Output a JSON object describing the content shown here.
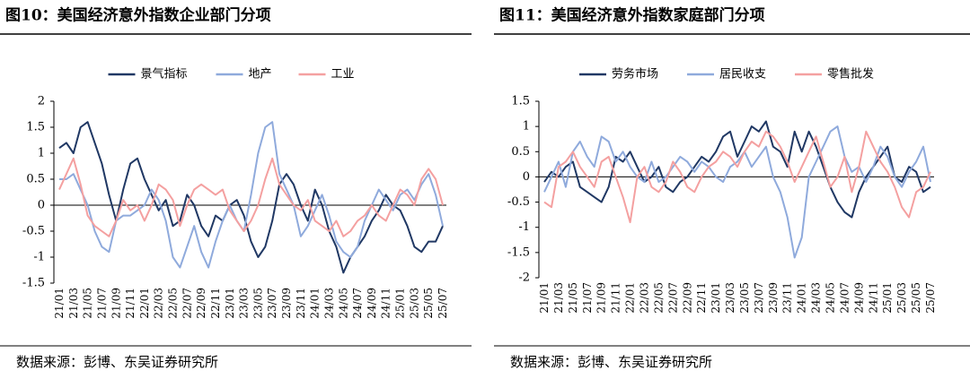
{
  "chart_data": [
    {
      "type": "line",
      "title": "图10：美国经济意外指数企业部门分项",
      "source": "数据来源：彭博、东吴证券研究所",
      "categories": [
        "21/01",
        null,
        "21/03",
        null,
        "21/05",
        null,
        "21/07",
        null,
        "21/09",
        null,
        "21/11",
        null,
        "22/01",
        null,
        "22/03",
        null,
        "22/05",
        null,
        "22/07",
        null,
        "22/09",
        null,
        "22/11",
        null,
        "23/01",
        null,
        "23/03",
        null,
        "23/05",
        null,
        "23/07",
        null,
        "23/09",
        null,
        "23/11",
        null,
        "24/01",
        null,
        "24/03",
        null,
        "24/05",
        null,
        "24/07",
        null,
        "24/09",
        null,
        "24/11",
        null,
        "25/01",
        null,
        "25/03",
        null,
        "25/05",
        null,
        "25/07"
      ],
      "series": [
        {
          "name": "景气指标",
          "color": "#203864",
          "values": [
            1.1,
            1.2,
            1.0,
            1.5,
            1.6,
            1.2,
            0.8,
            0.2,
            -0.3,
            0.3,
            0.8,
            0.9,
            0.5,
            0.2,
            -0.1,
            0.1,
            -0.4,
            -0.3,
            0.2,
            0.0,
            -0.4,
            -0.6,
            -0.2,
            -0.3,
            0.0,
            0.1,
            -0.2,
            -0.7,
            -1.0,
            -0.8,
            -0.3,
            0.4,
            0.6,
            0.4,
            0.0,
            -0.3,
            0.3,
            0.0,
            -0.5,
            -0.8,
            -1.3,
            -1.0,
            -0.8,
            -0.6,
            -0.3,
            -0.1,
            0.2,
            0.0,
            -0.1,
            -0.4,
            -0.8,
            -0.9,
            -0.7,
            -0.7,
            -0.4
          ]
        },
        {
          "name": "地产",
          "color": "#8faadc",
          "values": [
            0.5,
            0.5,
            0.6,
            0.3,
            0.0,
            -0.5,
            -0.8,
            -0.9,
            -0.3,
            -0.2,
            -0.2,
            -0.1,
            0.0,
            0.3,
            0.1,
            -0.3,
            -1.0,
            -1.2,
            -0.8,
            -0.4,
            -0.9,
            -1.2,
            -0.7,
            -0.3,
            0.0,
            -0.3,
            -0.5,
            0.2,
            1.0,
            1.5,
            1.6,
            0.6,
            0.3,
            0.0,
            -0.6,
            -0.4,
            -0.1,
            0.2,
            -0.2,
            -0.7,
            -0.9,
            -1.0,
            -0.8,
            -0.3,
            0.0,
            0.3,
            0.1,
            -0.1,
            0.2,
            0.3,
            0.1,
            0.4,
            0.6,
            0.2,
            -0.4
          ]
        },
        {
          "name": "工业",
          "color": "#f4a0a0",
          "values": [
            0.3,
            0.6,
            0.9,
            0.4,
            -0.2,
            -0.4,
            -0.5,
            -0.6,
            -0.3,
            0.1,
            -0.1,
            0.0,
            -0.3,
            0.0,
            0.4,
            0.3,
            0.1,
            -0.4,
            0.0,
            0.3,
            0.4,
            0.3,
            0.2,
            0.3,
            -0.1,
            -0.3,
            -0.5,
            -0.3,
            0.0,
            0.5,
            0.9,
            0.4,
            0.2,
            0.0,
            -0.1,
            0.1,
            -0.3,
            -0.4,
            -0.5,
            -0.3,
            -0.6,
            -0.5,
            -0.3,
            -0.2,
            0.0,
            -0.2,
            -0.3,
            0.0,
            0.3,
            0.2,
            0.0,
            0.5,
            0.7,
            0.5,
            0.0
          ]
        }
      ],
      "ylim": [
        -1.5,
        2
      ],
      "yticks": [
        -1.5,
        -1,
        -0.5,
        0,
        0.5,
        1,
        1.5,
        2
      ],
      "legend": "top"
    },
    {
      "type": "line",
      "title": "图11：美国经济意外指数家庭部门分项",
      "source": "数据来源：彭博、东吴证券研究所",
      "categories": [
        "21/01",
        null,
        "21/03",
        null,
        "21/05",
        null,
        "21/07",
        null,
        "21/09",
        null,
        "21/11",
        null,
        "22/01",
        null,
        "22/03",
        null,
        "22/05",
        null,
        "22/07",
        null,
        "22/09",
        null,
        "22/11",
        null,
        "23/01",
        null,
        "23/03",
        null,
        "23/05",
        null,
        "23/07",
        null,
        "23/09",
        null,
        "23/11",
        null,
        "24/01",
        null,
        "24/03",
        null,
        "24/05",
        null,
        "24/07",
        null,
        "24/09",
        null,
        "24/11",
        null,
        "25/01",
        null,
        "25/03",
        null,
        "25/05",
        null,
        "25/07"
      ],
      "series": [
        {
          "name": "劳务市场",
          "color": "#203864",
          "values": [
            -0.1,
            0.1,
            0.0,
            0.2,
            0.3,
            -0.2,
            -0.3,
            -0.4,
            -0.5,
            -0.2,
            0.4,
            0.3,
            0.5,
            0.2,
            -0.1,
            0.0,
            0.2,
            -0.2,
            -0.3,
            -0.1,
            0.0,
            0.2,
            0.4,
            0.3,
            0.5,
            0.8,
            0.9,
            0.4,
            0.7,
            1.0,
            0.9,
            1.1,
            0.6,
            0.5,
            0.2,
            0.9,
            0.5,
            0.9,
            0.6,
            0.2,
            -0.2,
            -0.5,
            -0.7,
            -0.8,
            -0.3,
            0.0,
            0.2,
            0.4,
            0.6,
            0.0,
            -0.1,
            0.2,
            0.1,
            -0.3,
            -0.2
          ]
        },
        {
          "name": "居民收支",
          "color": "#8faadc",
          "values": [
            -0.3,
            0.0,
            0.3,
            -0.2,
            0.5,
            0.7,
            0.4,
            0.2,
            0.8,
            0.7,
            0.3,
            0.5,
            0.2,
            0.0,
            -0.1,
            0.3,
            -0.1,
            0.0,
            0.2,
            0.4,
            0.3,
            0.1,
            0.3,
            0.2,
            0.0,
            -0.1,
            0.2,
            0.3,
            0.5,
            0.2,
            0.4,
            0.6,
            0.0,
            -0.3,
            -0.8,
            -1.6,
            -1.2,
            0.0,
            0.3,
            0.6,
            0.9,
            1.0,
            0.4,
            0.1,
            0.2,
            -0.1,
            0.2,
            0.6,
            0.4,
            0.0,
            -0.2,
            0.1,
            0.3,
            0.6,
            -0.1
          ]
        },
        {
          "name": "零售批发",
          "color": "#f4a0a0",
          "values": [
            -0.5,
            -0.6,
            0.2,
            0.3,
            0.5,
            0.2,
            0.0,
            -0.2,
            0.3,
            0.4,
            0.0,
            -0.4,
            -0.9,
            0.0,
            0.2,
            -0.2,
            -0.3,
            -0.1,
            0.3,
            0.1,
            -0.2,
            -0.3,
            0.0,
            0.2,
            0.3,
            0.5,
            0.4,
            0.2,
            0.5,
            0.7,
            0.6,
            0.9,
            0.8,
            0.6,
            0.3,
            -0.1,
            0.2,
            0.5,
            0.8,
            0.3,
            -0.2,
            0.0,
            0.4,
            -0.3,
            0.2,
            0.9,
            0.6,
            0.3,
            0.1,
            -0.2,
            -0.6,
            -0.8,
            -0.3,
            -0.2,
            0.1
          ]
        }
      ],
      "ylim": [
        -2,
        1.5
      ],
      "yticks": [
        -2,
        -1.5,
        -1,
        -0.5,
        0,
        0.5,
        1,
        1.5
      ],
      "legend": "top"
    }
  ]
}
